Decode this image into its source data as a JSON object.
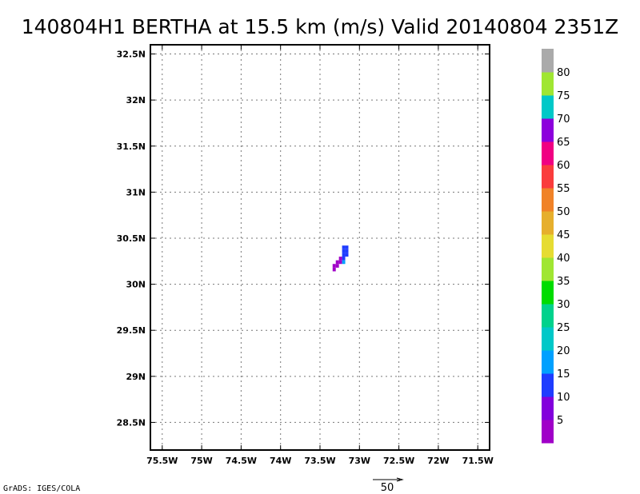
{
  "chart_data": {
    "type": "heatmap",
    "title": "140804H1 BERTHA at 15.5 km (m/s) Valid 20140804 2351Z",
    "xlim": [
      -75.65,
      -71.35
    ],
    "ylim": [
      28.2,
      32.6
    ],
    "x_ticks": [
      {
        "value": -75.5,
        "label": "75.5W"
      },
      {
        "value": -75.0,
        "label": "75W"
      },
      {
        "value": -74.5,
        "label": "74.5W"
      },
      {
        "value": -74.0,
        "label": "74W"
      },
      {
        "value": -73.5,
        "label": "73.5W"
      },
      {
        "value": -73.0,
        "label": "73W"
      },
      {
        "value": -72.5,
        "label": "72.5W"
      },
      {
        "value": -72.0,
        "label": "72W"
      },
      {
        "value": -71.5,
        "label": "71.5W"
      }
    ],
    "y_ticks": [
      {
        "value": 28.5,
        "label": "28.5N"
      },
      {
        "value": 29.0,
        "label": "29N"
      },
      {
        "value": 29.5,
        "label": "29.5N"
      },
      {
        "value": 30.0,
        "label": "30N"
      },
      {
        "value": 30.5,
        "label": "30.5N"
      },
      {
        "value": 31.0,
        "label": "31N"
      },
      {
        "value": 31.5,
        "label": "31.5N"
      },
      {
        "value": 32.0,
        "label": "32N"
      },
      {
        "value": 32.5,
        "label": "32.5N"
      }
    ],
    "grid": true,
    "cells": [
      {
        "lon": -73.2,
        "lat": 30.4,
        "value": 12
      },
      {
        "lon": -73.16,
        "lat": 30.4,
        "value": 12
      },
      {
        "lon": -73.2,
        "lat": 30.36,
        "value": 12
      },
      {
        "lon": -73.16,
        "lat": 30.36,
        "value": 12
      },
      {
        "lon": -73.2,
        "lat": 30.32,
        "value": 12
      },
      {
        "lon": -73.16,
        "lat": 30.32,
        "value": 12
      },
      {
        "lon": -73.24,
        "lat": 30.28,
        "value": 3
      },
      {
        "lon": -73.2,
        "lat": 30.28,
        "value": 12
      },
      {
        "lon": -73.28,
        "lat": 30.24,
        "value": 3
      },
      {
        "lon": -73.24,
        "lat": 30.24,
        "value": 3
      },
      {
        "lon": -73.2,
        "lat": 30.24,
        "value": 17
      },
      {
        "lon": -73.32,
        "lat": 30.2,
        "value": 3
      },
      {
        "lon": -73.28,
        "lat": 30.2,
        "value": 3
      },
      {
        "lon": -73.32,
        "lat": 30.16,
        "value": 3
      }
    ],
    "colorbar": {
      "labels": [
        "5",
        "10",
        "15",
        "20",
        "25",
        "30",
        "35",
        "40",
        "45",
        "50",
        "55",
        "60",
        "65",
        "70",
        "75",
        "80"
      ],
      "colors": [
        "#a000c8",
        "#8200dc",
        "#1e3cff",
        "#00a0ff",
        "#00c8c8",
        "#00d28c",
        "#00dc00",
        "#a0e632",
        "#e6dc32",
        "#e6af2d",
        "#f08228",
        "#fa3c3c",
        "#f00082",
        "#8c00dc",
        "#00c8c8",
        "#a0e632",
        "#aaaaaa"
      ]
    },
    "vector_reference": {
      "label": "50"
    },
    "credit": "GrADS: IGES/COLA"
  }
}
